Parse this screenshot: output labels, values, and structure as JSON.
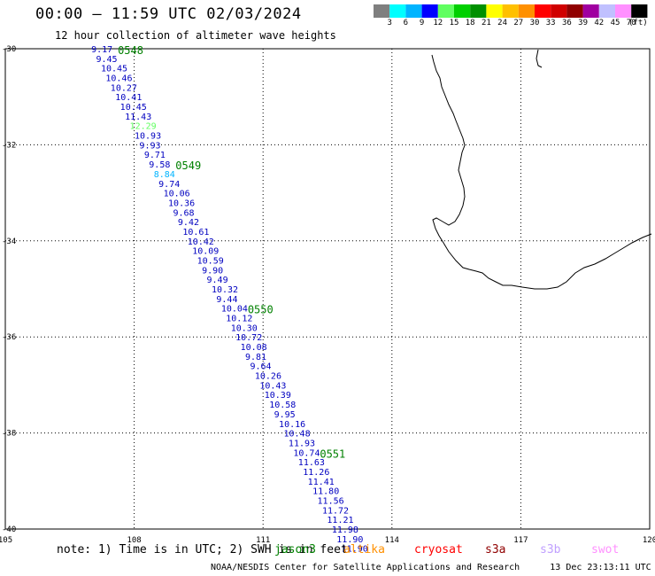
{
  "header": {
    "title": "00:00 – 11:59 UTC 02/03/2024",
    "subtitle": "12 hour collection of altimeter wave heights"
  },
  "colorbar": {
    "colors": [
      "#7f7f7f",
      "#00ffff",
      "#00b4ff",
      "#0000ff",
      "#60ff60",
      "#00d000",
      "#009000",
      "#ffff00",
      "#ffc000",
      "#ff9000",
      "#ff0000",
      "#d00000",
      "#900000",
      "#a000a0",
      "#c0c0ff",
      "#ff90ff",
      "#000000"
    ],
    "labels": [
      "3",
      "6",
      "9",
      "12",
      "15",
      "18",
      "21",
      "24",
      "27",
      "30",
      "33",
      "36",
      "39",
      "42",
      "45",
      "70"
    ],
    "unit": "(ft)"
  },
  "map": {
    "lon_range": [
      105,
      120
    ],
    "lat_range": [
      -40,
      -30
    ],
    "lon_ticks": [
      "105",
      "108",
      "111",
      "114",
      "117",
      "120"
    ],
    "lat_ticks": [
      "-30",
      "-32",
      "-34",
      "-36",
      "-38",
      "-40"
    ],
    "track": [
      {
        "lat": -30.0,
        "value": "9.17",
        "color": "#0000c0"
      },
      {
        "lat": -30.2,
        "value": "9.45",
        "color": "#0000c0"
      },
      {
        "lat": -30.4,
        "value": "10.45",
        "color": "#0000c0"
      },
      {
        "lat": -30.6,
        "value": "10.46",
        "color": "#0000c0"
      },
      {
        "lat": -30.8,
        "value": "10.27",
        "color": "#0000c0"
      },
      {
        "lat": -31.0,
        "value": "10.41",
        "color": "#0000c0"
      },
      {
        "lat": -31.2,
        "value": "10.45",
        "color": "#0000c0"
      },
      {
        "lat": -31.4,
        "value": "11.43",
        "color": "#0000c0"
      },
      {
        "lat": -31.6,
        "value": "12.29",
        "color": "#60ff60"
      },
      {
        "lat": -31.8,
        "value": "10.93",
        "color": "#0000c0"
      },
      {
        "lat": -32.0,
        "value": "9.93",
        "color": "#0000c0"
      },
      {
        "lat": -32.2,
        "value": "9.71",
        "color": "#0000c0"
      },
      {
        "lat": -32.4,
        "value": "9.58",
        "color": "#0000c0"
      },
      {
        "lat": -32.6,
        "value": "8.84",
        "color": "#00b4ff"
      },
      {
        "lat": -32.8,
        "value": "9.74",
        "color": "#0000c0"
      },
      {
        "lat": -33.0,
        "value": "10.06",
        "color": "#0000c0"
      },
      {
        "lat": -33.2,
        "value": "10.36",
        "color": "#0000c0"
      },
      {
        "lat": -33.4,
        "value": "9.68",
        "color": "#0000c0"
      },
      {
        "lat": -33.6,
        "value": "9.42",
        "color": "#0000c0"
      },
      {
        "lat": -33.8,
        "value": "10.61",
        "color": "#0000c0"
      },
      {
        "lat": -34.0,
        "value": "10.42",
        "color": "#0000c0"
      },
      {
        "lat": -34.2,
        "value": "10.09",
        "color": "#0000c0"
      },
      {
        "lat": -34.4,
        "value": "10.59",
        "color": "#0000c0"
      },
      {
        "lat": -34.6,
        "value": "9.90",
        "color": "#0000c0"
      },
      {
        "lat": -34.8,
        "value": "9.49",
        "color": "#0000c0"
      },
      {
        "lat": -35.0,
        "value": "10.32",
        "color": "#0000c0"
      },
      {
        "lat": -35.2,
        "value": "9.44",
        "color": "#0000c0"
      },
      {
        "lat": -35.4,
        "value": "10.04",
        "color": "#0000c0"
      },
      {
        "lat": -35.6,
        "value": "10.12",
        "color": "#0000c0"
      },
      {
        "lat": -35.8,
        "value": "10.30",
        "color": "#0000c0"
      },
      {
        "lat": -36.0,
        "value": "10.72",
        "color": "#0000c0"
      },
      {
        "lat": -36.2,
        "value": "10.08",
        "color": "#0000c0"
      },
      {
        "lat": -36.4,
        "value": "9.81",
        "color": "#0000c0"
      },
      {
        "lat": -36.6,
        "value": "9.64",
        "color": "#0000c0"
      },
      {
        "lat": -36.8,
        "value": "10.26",
        "color": "#0000c0"
      },
      {
        "lat": -37.0,
        "value": "10.43",
        "color": "#0000c0"
      },
      {
        "lat": -37.2,
        "value": "10.39",
        "color": "#0000c0"
      },
      {
        "lat": -37.4,
        "value": "10.58",
        "color": "#0000c0"
      },
      {
        "lat": -37.6,
        "value": "9.95",
        "color": "#0000c0"
      },
      {
        "lat": -37.8,
        "value": "10.16",
        "color": "#0000c0"
      },
      {
        "lat": -38.0,
        "value": "10.48",
        "color": "#0000c0"
      },
      {
        "lat": -38.2,
        "value": "11.93",
        "color": "#0000c0"
      },
      {
        "lat": -38.4,
        "value": "10.74",
        "color": "#0000c0"
      },
      {
        "lat": -38.6,
        "value": "11.63",
        "color": "#0000c0"
      },
      {
        "lat": -38.8,
        "value": "11.26",
        "color": "#0000c0"
      },
      {
        "lat": -39.0,
        "value": "11.41",
        "color": "#0000c0"
      },
      {
        "lat": -39.2,
        "value": "11.80",
        "color": "#0000c0"
      },
      {
        "lat": -39.4,
        "value": "11.56",
        "color": "#0000c0"
      },
      {
        "lat": -39.6,
        "value": "11.72",
        "color": "#0000c0"
      },
      {
        "lat": -39.8,
        "value": "11.21",
        "color": "#0000c0"
      },
      {
        "lat": -40.0,
        "value": "11.98",
        "color": "#0000c0"
      },
      {
        "lat": -40.2,
        "value": "11.90",
        "color": "#0000c0"
      },
      {
        "lat": -40.4,
        "value": "11.90",
        "color": "#0000c0"
      }
    ],
    "passes": [
      {
        "label": "0548",
        "lat": -30.0
      },
      {
        "label": "0549",
        "lat": -32.4
      },
      {
        "label": "0550",
        "lat": -35.4
      },
      {
        "label": "0551",
        "lat": -38.4
      }
    ]
  },
  "note": "note: 1) Time is in UTC; 2) SWH is in feet",
  "satellites": [
    {
      "name": "jason3",
      "color": "#008000"
    },
    {
      "name": "altika",
      "color": "#ff9000"
    },
    {
      "name": "cryosat",
      "color": "#ff0000"
    },
    {
      "name": "s3a",
      "color": "#900000"
    },
    {
      "name": "s3b",
      "color": "#c0a0ff"
    },
    {
      "name": "swot",
      "color": "#ff90ff"
    }
  ],
  "footer": {
    "agency": "NOAA/NESDIS Center for Satellite Applications and Research",
    "generated": "13 Dec 23:13:11 UTC 2024"
  }
}
